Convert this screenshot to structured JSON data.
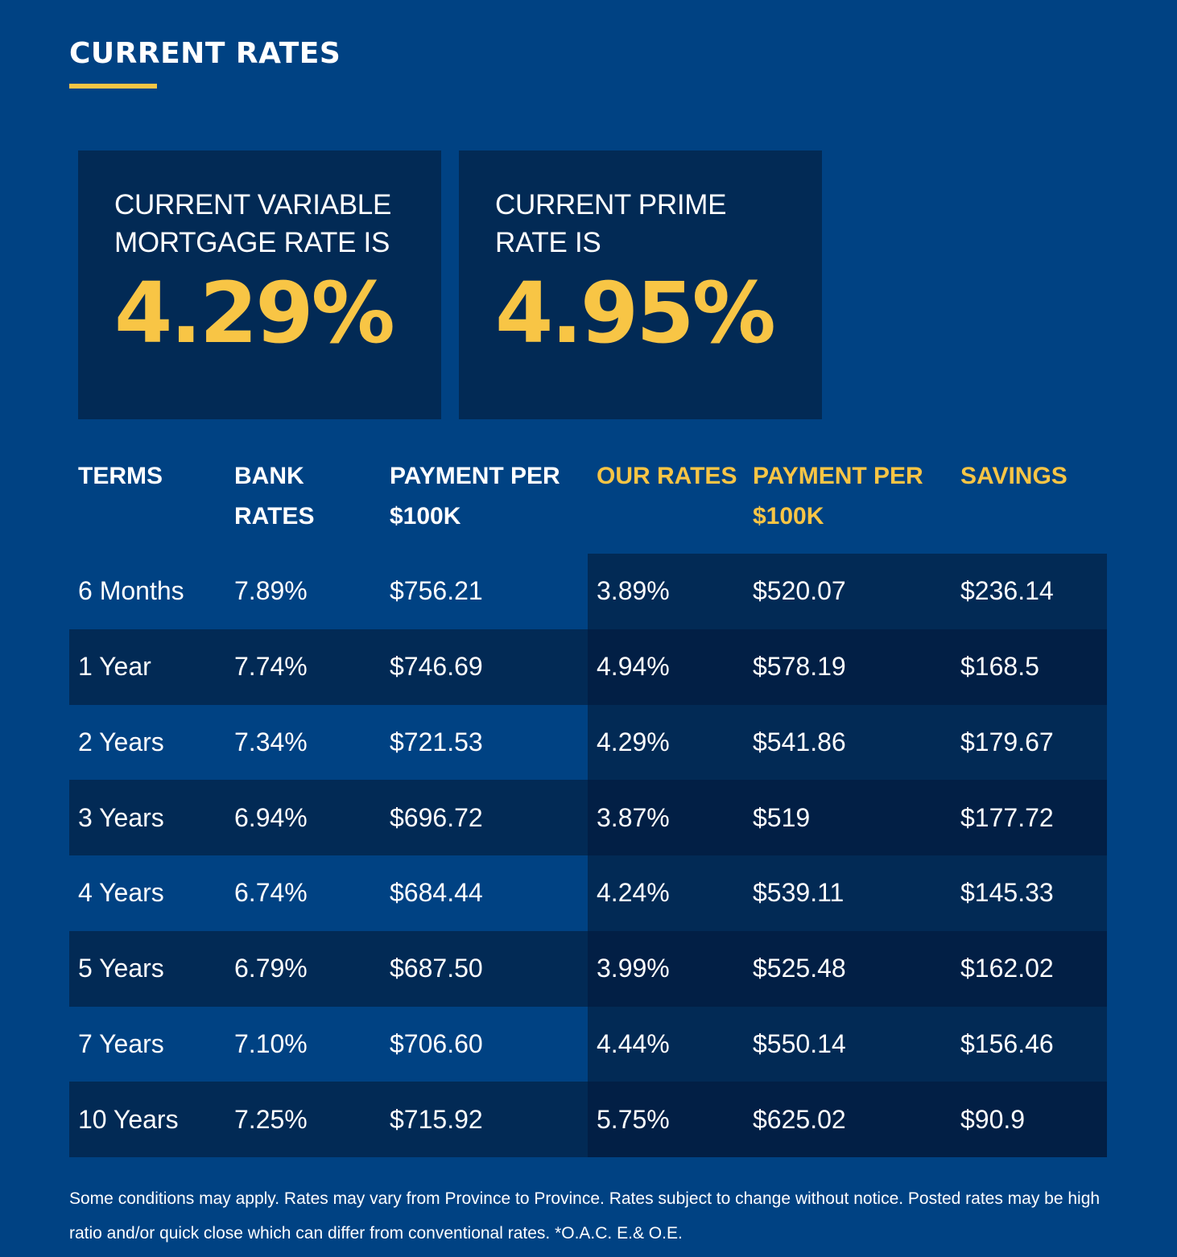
{
  "header": {
    "title": "CURRENT RATES"
  },
  "cards": {
    "variable": {
      "label": "CURRENT VARIABLE MORTGAGE RATE IS",
      "value": "4.29%"
    },
    "prime": {
      "label": "CURRENT PRIME RATE IS",
      "value": "4.95%"
    }
  },
  "table": {
    "headers": {
      "terms": "TERMS",
      "bank_rates": "BANK RATES",
      "bank_payment": "PAYMENT PER $100K",
      "our_rates": "OUR RATES",
      "our_payment": "PAYMENT PER $100K",
      "savings": "SAVINGS"
    },
    "rows": [
      {
        "term": "6 Months",
        "bank_rate": "7.89%",
        "bank_payment": "$756.21",
        "our_rate": "3.89%",
        "our_payment": "$520.07",
        "savings": "$236.14"
      },
      {
        "term": "1 Year",
        "bank_rate": "7.74%",
        "bank_payment": "$746.69",
        "our_rate": "4.94%",
        "our_payment": "$578.19",
        "savings": "$168.5"
      },
      {
        "term": "2 Years",
        "bank_rate": "7.34%",
        "bank_payment": "$721.53",
        "our_rate": "4.29%",
        "our_payment": "$541.86",
        "savings": "$179.67"
      },
      {
        "term": "3 Years",
        "bank_rate": "6.94%",
        "bank_payment": "$696.72",
        "our_rate": "3.87%",
        "our_payment": "$519",
        "savings": "$177.72"
      },
      {
        "term": "4 Years",
        "bank_rate": "6.74%",
        "bank_payment": "$684.44",
        "our_rate": "4.24%",
        "our_payment": "$539.11",
        "savings": "$145.33"
      },
      {
        "term": "5 Years",
        "bank_rate": "6.79%",
        "bank_payment": "$687.50",
        "our_rate": "3.99%",
        "our_payment": "$525.48",
        "savings": "$162.02"
      },
      {
        "term": "7 Years",
        "bank_rate": "7.10%",
        "bank_payment": "$706.60",
        "our_rate": "4.44%",
        "our_payment": "$550.14",
        "savings": "$156.46"
      },
      {
        "term": "10 Years",
        "bank_rate": "7.25%",
        "bank_payment": "$715.92",
        "our_rate": "5.75%",
        "our_payment": "$625.02",
        "savings": "$90.9"
      }
    ]
  },
  "footer": {
    "disclaimer": "Some conditions may apply. Rates may vary from Province to Province. Rates subject to change without notice. Posted rates may be high ratio and/or quick close which can differ from conventional rates. *O.A.C. E.& O.E."
  },
  "colors": {
    "background": "#004283",
    "card": "#022a55",
    "accent": "#f8c545"
  }
}
